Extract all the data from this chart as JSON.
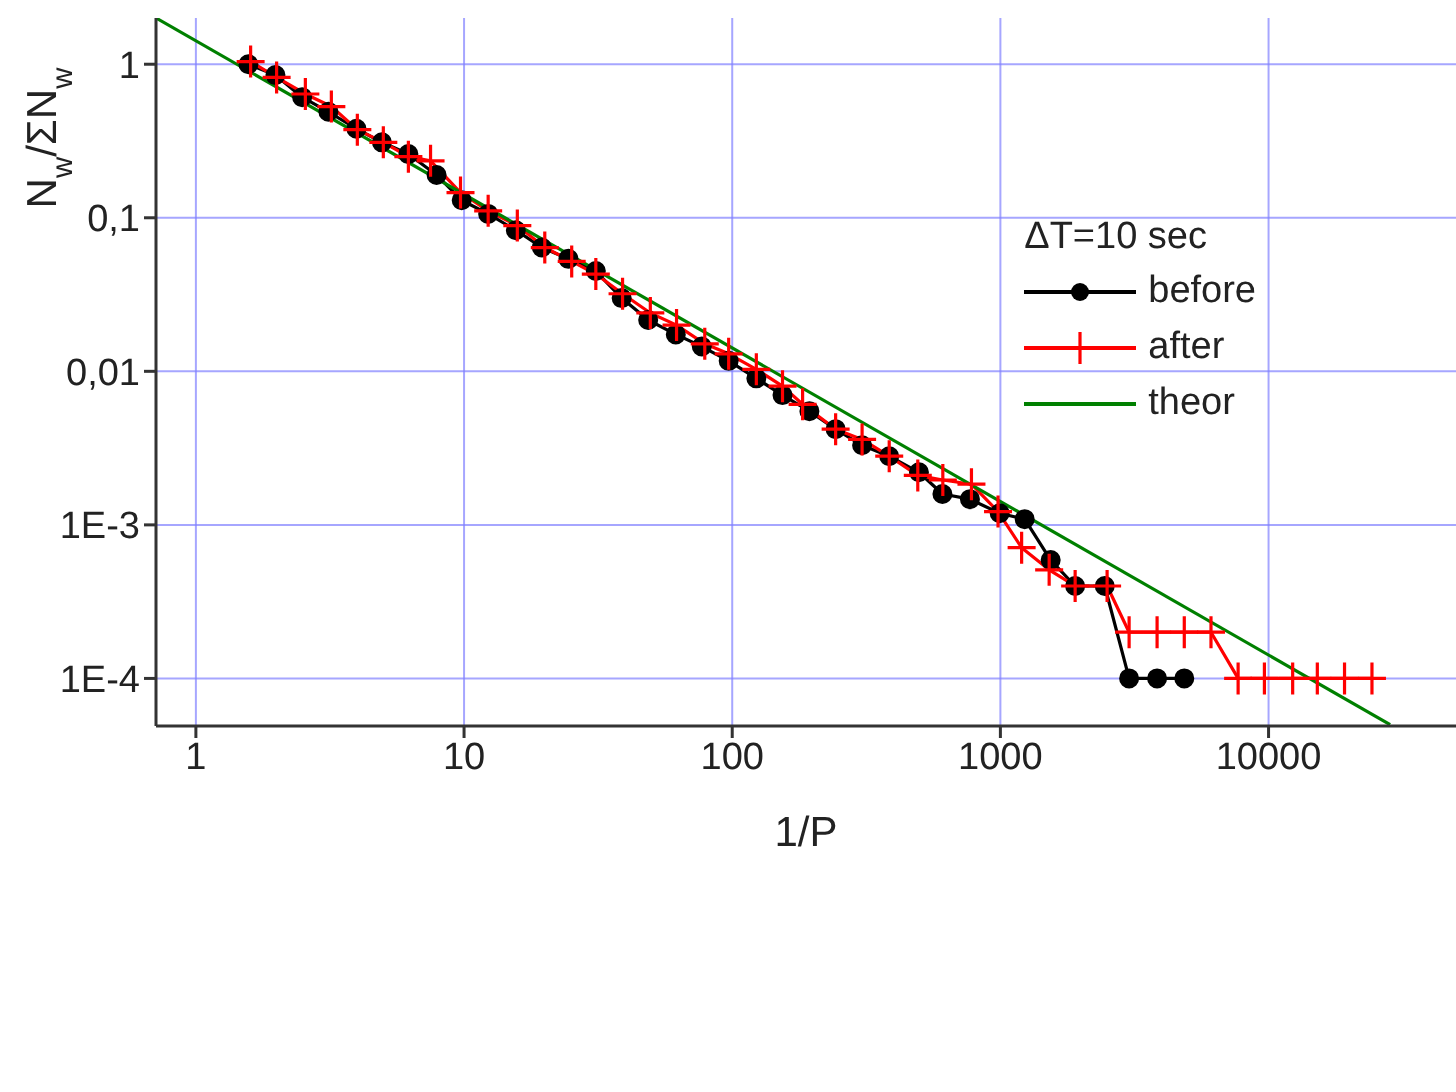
{
  "chart_data": {
    "type": "line",
    "xlabel": "1/P",
    "ylabel": "N$_{w}$/ΣN$_{w}$",
    "legend_title": "ΔT=10 sec",
    "log": "xy",
    "grid": true,
    "legend": "right",
    "xlim": [
      0.71,
      50000
    ],
    "xticks": [
      1,
      10,
      100,
      1000,
      10000
    ],
    "ylim": [
      4.9e-05,
      2
    ],
    "yticks": [
      1,
      {
        "value": 0.1,
        "label": "0,1"
      },
      {
        "value": 0.01,
        "label": "0,01"
      },
      {
        "value": 0.001,
        "label": "1E-3"
      },
      {
        "value": 0.0001,
        "label": "1E-4"
      }
    ],
    "series": [
      {
        "name": "before",
        "color": "#000000",
        "marker": "circle",
        "x": [
          1.57,
          1.98,
          2.49,
          3.12,
          3.97,
          4.94,
          6.2,
          7.9,
          9.8,
          12.3,
          15.6,
          19.5,
          24.5,
          31,
          38.7,
          48.6,
          61.6,
          77,
          97,
          123,
          154,
          194,
          243,
          305,
          385,
          497,
          608,
          770,
          994,
          1232,
          1540,
          1900,
          2450,
          3020,
          3840,
          4850
        ],
        "values": [
          1.0,
          0.85,
          0.61,
          0.49,
          0.38,
          0.31,
          0.26,
          0.19,
          0.13,
          0.106,
          0.083,
          0.064,
          0.054,
          0.045,
          0.03,
          0.0216,
          0.0174,
          0.0145,
          0.0117,
          0.009,
          0.007,
          0.0055,
          0.0042,
          0.0033,
          0.0028,
          0.0022,
          0.00159,
          0.00147,
          0.00119,
          0.00109,
          0.00059,
          0.0004,
          0.0004,
          0.0001,
          0.0001,
          0.0001
        ]
      },
      {
        "name": "after",
        "color": "#ff0000",
        "marker": "cross",
        "x": [
          1.6,
          2.0,
          2.56,
          3.2,
          4.0,
          5.0,
          6.2,
          7.5,
          9.7,
          12.3,
          15.8,
          20,
          25.2,
          31,
          39,
          49.5,
          62,
          79,
          97,
          123,
          154,
          183,
          243,
          305,
          385,
          492,
          610,
          780,
          980,
          1200,
          1520,
          1900,
          2500,
          3020,
          3840,
          4850,
          6100,
          7700,
          9650,
          12300,
          15200,
          19200,
          24300
        ],
        "values": [
          1.04,
          0.82,
          0.64,
          0.53,
          0.375,
          0.31,
          0.25,
          0.235,
          0.146,
          0.111,
          0.089,
          0.064,
          0.052,
          0.043,
          0.032,
          0.024,
          0.02,
          0.0151,
          0.013,
          0.0103,
          0.008,
          0.0061,
          0.0042,
          0.0036,
          0.0028,
          0.0021,
          0.00196,
          0.00184,
          0.00122,
          0.00071,
          0.00051,
          0.0004,
          0.0004,
          0.0002,
          0.0002,
          0.0002,
          0.0002,
          0.0001,
          0.0001,
          0.0001,
          0.0001,
          0.0001,
          0.0001
        ]
      },
      {
        "name": "theor",
        "color": "#008000",
        "marker": "none",
        "x": [
          0.71,
          28400
        ],
        "values": [
          2.0,
          5e-05
        ]
      }
    ]
  }
}
